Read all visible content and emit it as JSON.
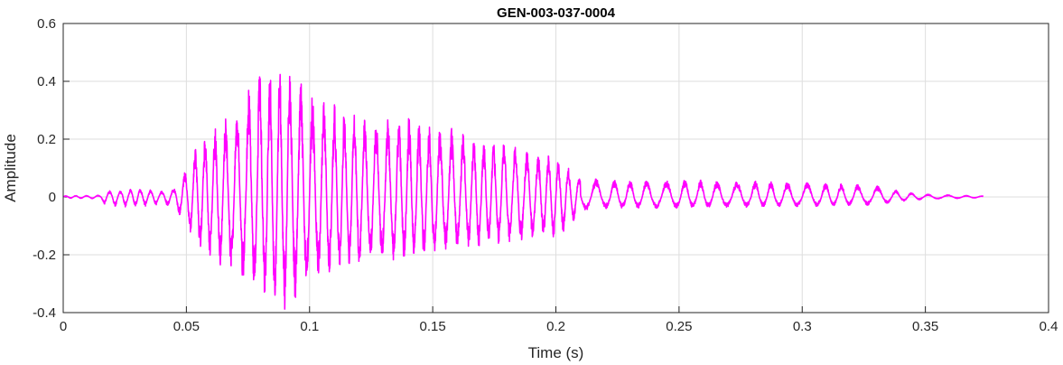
{
  "chart_data": {
    "type": "line",
    "title": "GEN-003-037-0004",
    "xlabel": "Time (s)",
    "ylabel": "Amplitude",
    "xlim": [
      0,
      0.4
    ],
    "ylim": [
      -0.4,
      0.6
    ],
    "xticks": [
      0,
      0.05,
      0.1,
      0.15,
      0.2,
      0.25,
      0.3,
      0.35,
      0.4
    ],
    "xtick_labels": [
      "0",
      "0.05",
      "0.1",
      "0.15",
      "0.2",
      "0.25",
      "0.3",
      "0.35",
      "0.4"
    ],
    "yticks": [
      -0.4,
      -0.2,
      0,
      0.2,
      0.4,
      0.6
    ],
    "ytick_labels": [
      "-0.4",
      "-0.2",
      "0",
      "0.2",
      "0.4",
      "0.6"
    ],
    "grid": true,
    "line_color": "#ff00ff",
    "series": [
      {
        "x_start": 0,
        "x_end": 0.3735,
        "envelope_times": [
          0,
          0.015,
          0.017,
          0.025,
          0.03,
          0.04,
          0.045,
          0.05,
          0.055,
          0.06,
          0.07,
          0.08,
          0.085,
          0.09,
          0.1,
          0.11,
          0.12,
          0.13,
          0.14,
          0.15,
          0.16,
          0.17,
          0.18,
          0.19,
          0.2,
          0.205,
          0.21,
          0.22,
          0.25,
          0.28,
          0.3,
          0.32,
          0.33,
          0.34,
          0.35,
          0.3735
        ],
        "envelope_upper": [
          0.004,
          0.006,
          0.02,
          0.025,
          0.03,
          0.02,
          0.03,
          0.1,
          0.2,
          0.24,
          0.3,
          0.45,
          0.47,
          0.47,
          0.36,
          0.32,
          0.28,
          0.28,
          0.28,
          0.25,
          0.23,
          0.2,
          0.19,
          0.16,
          0.14,
          0.1,
          0.07,
          0.06,
          0.06,
          0.055,
          0.05,
          0.045,
          0.04,
          0.02,
          0.01,
          0.003
        ],
        "envelope_lower": [
          -0.004,
          -0.006,
          -0.03,
          -0.035,
          -0.035,
          -0.025,
          -0.035,
          -0.1,
          -0.18,
          -0.22,
          -0.27,
          -0.34,
          -0.36,
          -0.4,
          -0.3,
          -0.26,
          -0.24,
          -0.22,
          -0.22,
          -0.2,
          -0.18,
          -0.17,
          -0.16,
          -0.15,
          -0.14,
          -0.12,
          -0.05,
          -0.04,
          -0.04,
          -0.035,
          -0.035,
          -0.03,
          -0.028,
          -0.015,
          -0.008,
          -0.003
        ]
      }
    ]
  }
}
